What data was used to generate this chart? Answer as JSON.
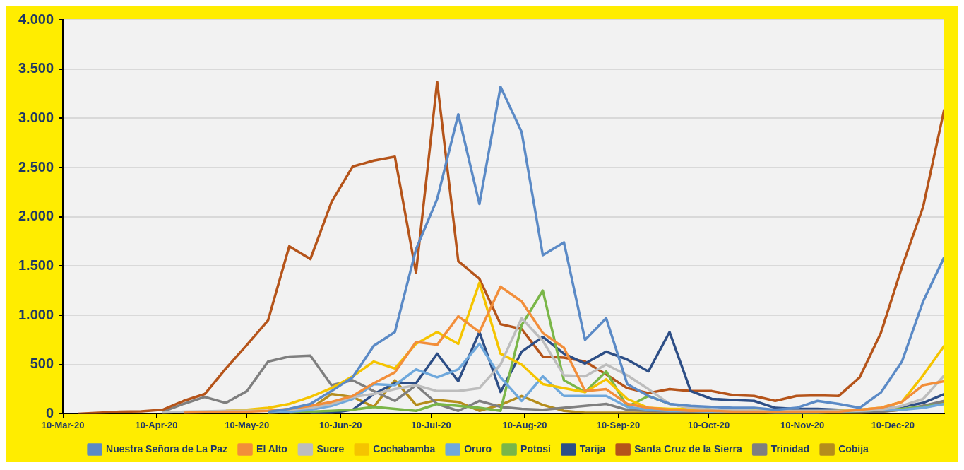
{
  "chart_data": {
    "type": "line",
    "x": [
      "2020-03-15",
      "2020-03-22",
      "2020-03-29",
      "2020-04-05",
      "2020-04-12",
      "2020-04-19",
      "2020-04-26",
      "2020-05-03",
      "2020-05-10",
      "2020-05-17",
      "2020-05-24",
      "2020-05-31",
      "2020-06-07",
      "2020-06-14",
      "2020-06-21",
      "2020-06-28",
      "2020-07-05",
      "2020-07-12",
      "2020-07-19",
      "2020-07-26",
      "2020-08-02",
      "2020-08-09",
      "2020-08-16",
      "2020-08-23",
      "2020-08-30",
      "2020-09-06",
      "2020-09-13",
      "2020-09-20",
      "2020-09-27",
      "2020-10-04",
      "2020-10-11",
      "2020-10-18",
      "2020-10-25",
      "2020-11-01",
      "2020-11-08",
      "2020-11-15",
      "2020-11-22",
      "2020-11-29",
      "2020-12-06",
      "2020-12-13",
      "2020-12-20",
      "2020-12-27"
    ],
    "series": [
      {
        "name": "Nuestra Señora de La Paz",
        "color": "#5b8ac6",
        "values": [
          null,
          null,
          null,
          null,
          null,
          null,
          null,
          null,
          null,
          20,
          50,
          100,
          230,
          370,
          690,
          830,
          1670,
          2180,
          3040,
          2130,
          3320,
          2860,
          1610,
          1740,
          750,
          970,
          300,
          180,
          100,
          80,
          70,
          60,
          60,
          40,
          60,
          130,
          100,
          60,
          215,
          530,
          1140,
          1590
        ]
      },
      {
        "name": "El Alto",
        "color": "#f28e3a",
        "values": [
          null,
          null,
          null,
          null,
          null,
          10,
          15,
          20,
          20,
          30,
          50,
          80,
          120,
          180,
          310,
          420,
          730,
          700,
          990,
          830,
          1290,
          1140,
          820,
          670,
          230,
          250,
          100,
          60,
          40,
          30,
          30,
          20,
          20,
          20,
          20,
          20,
          20,
          40,
          60,
          120,
          290,
          330
        ]
      },
      {
        "name": "Sucre",
        "color": "#bdbdbd",
        "values": [
          null,
          null,
          null,
          null,
          10,
          20,
          25,
          30,
          30,
          30,
          40,
          60,
          100,
          170,
          200,
          250,
          290,
          230,
          230,
          260,
          500,
          970,
          740,
          390,
          380,
          500,
          390,
          250,
          100,
          60,
          40,
          40,
          30,
          30,
          30,
          30,
          30,
          30,
          40,
          80,
          150,
          390
        ]
      },
      {
        "name": "Cochabamba",
        "color": "#f5c400",
        "values": [
          null,
          null,
          null,
          null,
          null,
          null,
          null,
          30,
          40,
          60,
          100,
          170,
          260,
          380,
          530,
          460,
          710,
          830,
          710,
          1330,
          610,
          500,
          300,
          260,
          220,
          350,
          150,
          60,
          50,
          50,
          40,
          30,
          30,
          30,
          20,
          20,
          30,
          40,
          60,
          120,
          390,
          690
        ]
      },
      {
        "name": "Oruro",
        "color": "#6fa8dc",
        "values": [
          null,
          null,
          null,
          null,
          null,
          null,
          null,
          null,
          null,
          10,
          20,
          40,
          80,
          150,
          300,
          290,
          450,
          370,
          450,
          710,
          370,
          130,
          380,
          180,
          180,
          180,
          70,
          40,
          30,
          30,
          20,
          20,
          20,
          10,
          10,
          10,
          20,
          30,
          40,
          40,
          60,
          100
        ]
      },
      {
        "name": "Potosí",
        "color": "#7ab648",
        "values": [
          null,
          null,
          null,
          null,
          null,
          null,
          null,
          null,
          null,
          null,
          10,
          20,
          30,
          40,
          70,
          50,
          30,
          100,
          80,
          60,
          30,
          900,
          1250,
          340,
          220,
          430,
          70,
          180,
          100,
          60,
          40,
          30,
          30,
          20,
          20,
          20,
          20,
          30,
          40,
          50,
          70,
          100
        ]
      },
      {
        "name": "Tarija",
        "color": "#2d4e86",
        "values": [
          null,
          null,
          null,
          null,
          null,
          null,
          null,
          null,
          null,
          null,
          null,
          5,
          10,
          40,
          200,
          310,
          310,
          610,
          330,
          830,
          220,
          630,
          780,
          610,
          510,
          630,
          550,
          430,
          830,
          230,
          150,
          140,
          130,
          60,
          50,
          50,
          40,
          40,
          50,
          70,
          110,
          200
        ]
      },
      {
        "name": "Santa Cruz de la Sierra",
        "color": "#b5541a",
        "values": [
          0,
          10,
          20,
          25,
          40,
          130,
          200,
          460,
          700,
          950,
          1700,
          1570,
          2150,
          2510,
          2570,
          2610,
          1430,
          3370,
          1550,
          1370,
          910,
          860,
          580,
          570,
          530,
          400,
          260,
          210,
          250,
          230,
          230,
          190,
          180,
          130,
          180,
          185,
          180,
          370,
          820,
          1490,
          2100,
          3090
        ]
      },
      {
        "name": "Trinidad",
        "color": "#7f7f7f",
        "values": [
          null,
          null,
          null,
          null,
          20,
          100,
          170,
          110,
          230,
          530,
          580,
          590,
          290,
          340,
          230,
          130,
          290,
          100,
          30,
          130,
          70,
          50,
          40,
          60,
          80,
          100,
          40,
          30,
          20,
          20,
          20,
          20,
          20,
          20,
          20,
          20,
          20,
          20,
          20,
          40,
          80,
          130
        ]
      },
      {
        "name": "Cobija",
        "color": "#b58d1c",
        "values": [
          null,
          null,
          null,
          null,
          null,
          null,
          null,
          null,
          null,
          10,
          20,
          50,
          200,
          170,
          70,
          340,
          90,
          140,
          120,
          30,
          90,
          180,
          90,
          30,
          10,
          10,
          10,
          10,
          10,
          10,
          10,
          10,
          10,
          10,
          10,
          10,
          10,
          10,
          20,
          40,
          80,
          120
        ]
      }
    ],
    "xlim": [
      "2020-03-10",
      "2020-12-27"
    ],
    "xticks": [
      {
        "value": "2020-03-10",
        "label": "10-Mar-20"
      },
      {
        "value": "2020-04-10",
        "label": "10-Apr-20"
      },
      {
        "value": "2020-05-10",
        "label": "10-May-20"
      },
      {
        "value": "2020-06-10",
        "label": "10-Jun-20"
      },
      {
        "value": "2020-07-10",
        "label": "10-Jul-20"
      },
      {
        "value": "2020-08-10",
        "label": "10-Aug-20"
      },
      {
        "value": "2020-09-10",
        "label": "10-Sep-20"
      },
      {
        "value": "2020-10-10",
        "label": "10-Oct-20"
      },
      {
        "value": "2020-11-10",
        "label": "10-Nov-20"
      },
      {
        "value": "2020-12-10",
        "label": "10-Dec-20"
      }
    ],
    "ylim": [
      0,
      4000
    ],
    "yticks": [
      0,
      {
        "value": 500,
        "label": "500"
      },
      {
        "value": 1000,
        "label": "1.000"
      },
      {
        "value": 1500,
        "label": "1.500"
      },
      {
        "value": 2000,
        "label": "2.000"
      },
      {
        "value": 2500,
        "label": "2.500"
      },
      {
        "value": 3000,
        "label": "3.000"
      },
      {
        "value": 3500,
        "label": "3.500"
      },
      {
        "value": 4000,
        "label": "4.000"
      }
    ],
    "grid": "y",
    "legend": "bottom",
    "marker": "none",
    "line_style": "solid"
  }
}
